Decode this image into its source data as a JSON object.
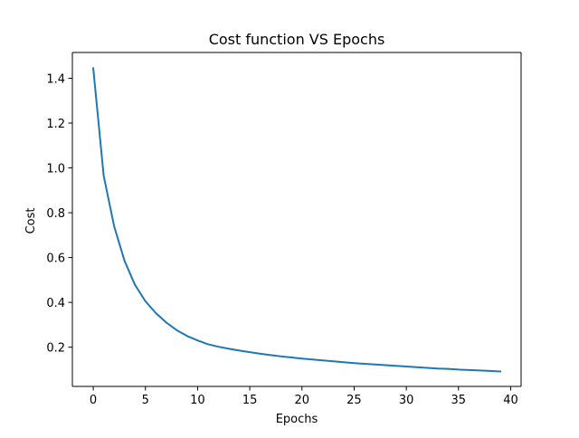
{
  "chart_data": {
    "type": "line",
    "title": "Cost function VS Epochs",
    "xlabel": "Epochs",
    "ylabel": "Cost",
    "xlim": [
      -2,
      41
    ],
    "ylim": [
      0.025,
      1.515
    ],
    "xticks": [
      0,
      5,
      10,
      15,
      20,
      25,
      30,
      35,
      40
    ],
    "yticks": [
      0.2,
      0.4,
      0.6,
      0.8,
      1.0,
      1.2,
      1.4
    ],
    "ytick_labels": [
      "0.2",
      "0.4",
      "0.6",
      "0.8",
      "1.0",
      "1.2",
      "1.4"
    ],
    "grid": false,
    "legend": "none",
    "series": [
      {
        "color": "#1f77b4",
        "x": [
          0,
          1,
          2,
          3,
          4,
          5,
          6,
          7,
          8,
          9,
          10,
          11,
          12,
          13,
          14,
          15,
          16,
          17,
          18,
          19,
          20,
          21,
          22,
          23,
          24,
          25,
          26,
          27,
          28,
          29,
          30,
          31,
          32,
          33,
          34,
          35,
          36,
          37,
          38,
          39
        ],
        "values": [
          1.445,
          0.965,
          0.74,
          0.585,
          0.478,
          0.405,
          0.352,
          0.31,
          0.276,
          0.25,
          0.23,
          0.213,
          0.202,
          0.193,
          0.185,
          0.178,
          0.171,
          0.165,
          0.159,
          0.154,
          0.149,
          0.145,
          0.141,
          0.137,
          0.133,
          0.129,
          0.126,
          0.123,
          0.12,
          0.117,
          0.114,
          0.111,
          0.108,
          0.105,
          0.103,
          0.1,
          0.098,
          0.096,
          0.094,
          0.092
        ]
      }
    ]
  }
}
